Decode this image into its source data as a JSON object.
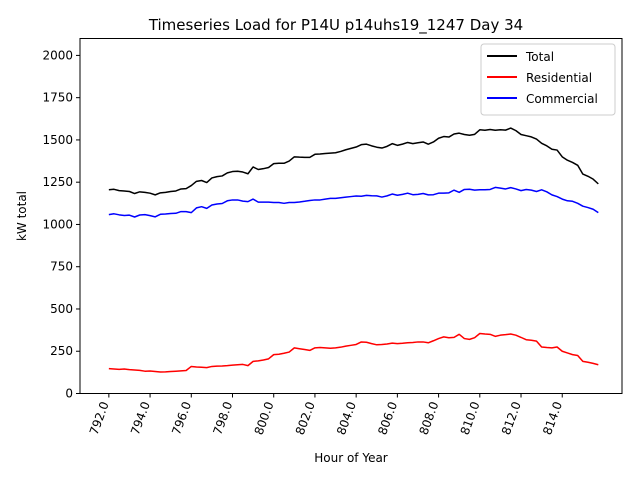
{
  "chart_data": {
    "type": "line",
    "title": "Timeseries Load for P14U p14uhs19_1247  Day 34",
    "xlabel": "Hour of Year",
    "ylabel": "kW total",
    "xlim": [
      790.6,
      816.9
    ],
    "ylim": [
      0,
      2100
    ],
    "x_ticks": [
      792,
      794,
      796,
      798,
      800,
      802,
      804,
      806,
      808,
      810,
      812,
      814
    ],
    "x_tick_labels": [
      "792.0",
      "794.0",
      "796.0",
      "798.0",
      "800.0",
      "802.0",
      "804.0",
      "806.0",
      "808.0",
      "810.0",
      "812.0",
      "814.0"
    ],
    "y_ticks": [
      0,
      250,
      500,
      750,
      1000,
      1250,
      1500,
      1750,
      2000
    ],
    "y_tick_labels": [
      "0",
      "250",
      "500",
      "750",
      "1000",
      "1250",
      "1500",
      "1750",
      "2000"
    ],
    "legend_position": "top-right",
    "grid": false,
    "x": {
      "start": 792.0,
      "step": 0.25,
      "count": 96
    },
    "series": [
      {
        "name": "Total",
        "color": "#000000",
        "values": [
          1205,
          1208,
          1200,
          1198,
          1195,
          1183,
          1193,
          1190,
          1185,
          1175,
          1187,
          1190,
          1195,
          1198,
          1210,
          1212,
          1230,
          1255,
          1260,
          1248,
          1275,
          1283,
          1287,
          1305,
          1313,
          1315,
          1310,
          1300,
          1340,
          1325,
          1330,
          1337,
          1360,
          1362,
          1362,
          1375,
          1400,
          1398,
          1397,
          1397,
          1415,
          1417,
          1420,
          1422,
          1424,
          1432,
          1442,
          1450,
          1458,
          1472,
          1475,
          1465,
          1457,
          1452,
          1462,
          1478,
          1468,
          1475,
          1485,
          1478,
          1483,
          1488,
          1475,
          1488,
          1510,
          1520,
          1517,
          1535,
          1540,
          1532,
          1528,
          1533,
          1560,
          1557,
          1562,
          1557,
          1560,
          1558,
          1570,
          1555,
          1532,
          1525,
          1518,
          1505,
          1480,
          1465,
          1445,
          1440,
          1400,
          1380,
          1367,
          1350,
          1298,
          1285,
          1268,
          1240
        ]
      },
      {
        "name": "Residential",
        "color": "#ff0000",
        "values": [
          147,
          145,
          143,
          145,
          141,
          139,
          137,
          132,
          133,
          130,
          127,
          128,
          130,
          132,
          134,
          136,
          160,
          157,
          155,
          153,
          160,
          162,
          163,
          165,
          168,
          170,
          172,
          165,
          190,
          193,
          198,
          205,
          230,
          232,
          238,
          245,
          270,
          265,
          260,
          255,
          270,
          272,
          270,
          268,
          270,
          274,
          280,
          285,
          290,
          305,
          303,
          295,
          288,
          290,
          293,
          298,
          295,
          297,
          300,
          302,
          305,
          305,
          300,
          312,
          325,
          335,
          330,
          332,
          350,
          325,
          320,
          330,
          355,
          352,
          350,
          338,
          345,
          348,
          352,
          345,
          332,
          318,
          315,
          310,
          275,
          272,
          270,
          275,
          250,
          240,
          230,
          225,
          190,
          185,
          178,
          170
        ]
      },
      {
        "name": "Commercial",
        "color": "#0000ff",
        "values": [
          1058,
          1063,
          1057,
          1053,
          1055,
          1044,
          1056,
          1058,
          1052,
          1045,
          1060,
          1062,
          1065,
          1066,
          1076,
          1076,
          1070,
          1098,
          1105,
          1095,
          1115,
          1121,
          1124,
          1140,
          1145,
          1145,
          1138,
          1135,
          1150,
          1132,
          1132,
          1132,
          1130,
          1130,
          1125,
          1130,
          1130,
          1133,
          1137,
          1142,
          1145,
          1145,
          1150,
          1154,
          1154,
          1158,
          1162,
          1165,
          1168,
          1167,
          1172,
          1170,
          1169,
          1162,
          1169,
          1180,
          1173,
          1178,
          1185,
          1176,
          1178,
          1183,
          1175,
          1176,
          1185,
          1185,
          1187,
          1203,
          1190,
          1207,
          1208,
          1203,
          1205,
          1205,
          1207,
          1219,
          1215,
          1210,
          1218,
          1210,
          1200,
          1207,
          1203,
          1195,
          1205,
          1193,
          1175,
          1165,
          1150,
          1140,
          1137,
          1125,
          1108,
          1100,
          1090,
          1070
        ]
      }
    ]
  }
}
